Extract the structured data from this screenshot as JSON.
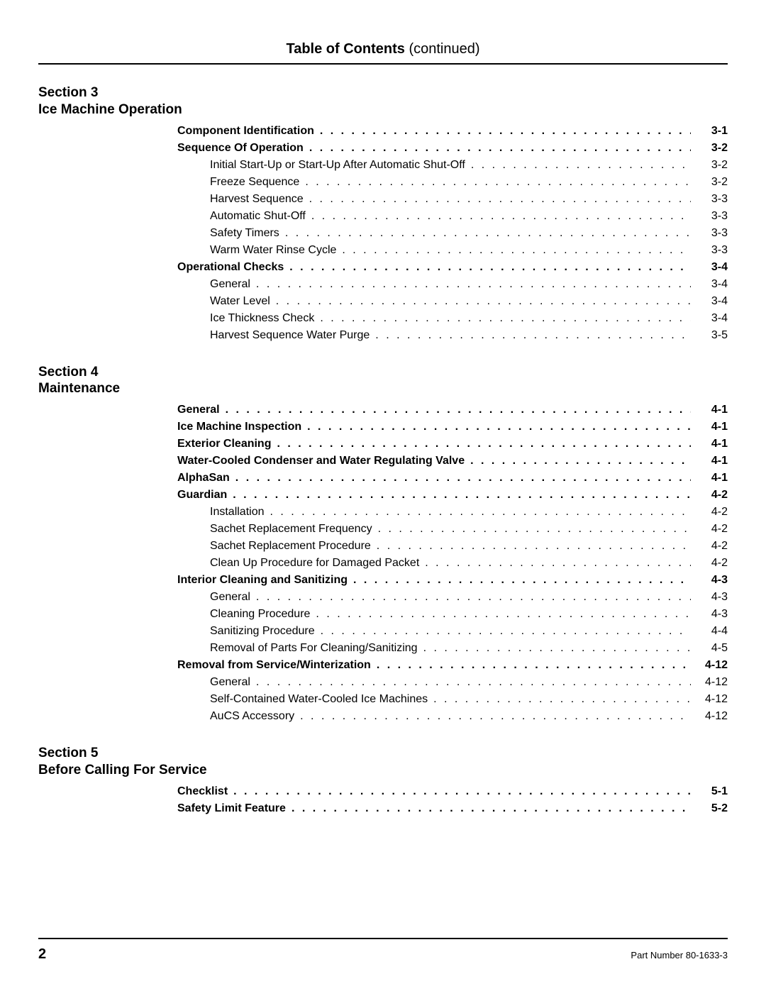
{
  "title": {
    "main": "Table of Contents",
    "continued": "(continued)"
  },
  "footer": {
    "page_number": "2",
    "part_number": "Part Number 80-1633-3"
  },
  "colors": {
    "text": "#000000",
    "background": "#ffffff",
    "rule": "#000000"
  },
  "fonts": {
    "title_size_pt": 20,
    "section_size_pt": 19,
    "body_size_pt": 16,
    "footer_small_pt": 13
  },
  "sections": [
    {
      "number": "Section 3",
      "title": "Ice Machine Operation",
      "entries": [
        {
          "label": "Component Identification",
          "page": "3-1",
          "indent": 0,
          "bold": true
        },
        {
          "label": "Sequence Of Operation",
          "page": "3-2",
          "indent": 0,
          "bold": true
        },
        {
          "label": "Initial Start-Up or Start-Up After Automatic Shut-Off",
          "page": "3-2",
          "indent": 1,
          "bold": false
        },
        {
          "label": "Freeze Sequence",
          "page": "3-2",
          "indent": 1,
          "bold": false
        },
        {
          "label": "Harvest Sequence",
          "page": "3-3",
          "indent": 1,
          "bold": false
        },
        {
          "label": "Automatic Shut-Off",
          "page": "3-3",
          "indent": 1,
          "bold": false
        },
        {
          "label": "Safety Timers",
          "page": "3-3",
          "indent": 1,
          "bold": false
        },
        {
          "label": "Warm Water Rinse Cycle",
          "page": "3-3",
          "indent": 1,
          "bold": false
        },
        {
          "label": "Operational Checks",
          "page": "3-4",
          "indent": 0,
          "bold": true
        },
        {
          "label": "General",
          "page": "3-4",
          "indent": 1,
          "bold": false
        },
        {
          "label": "Water Level",
          "page": "3-4",
          "indent": 1,
          "bold": false
        },
        {
          "label": "Ice Thickness Check",
          "page": "3-4",
          "indent": 1,
          "bold": false
        },
        {
          "label": "Harvest Sequence Water Purge",
          "page": "3-5",
          "indent": 1,
          "bold": false
        }
      ]
    },
    {
      "number": "Section 4",
      "title": "Maintenance",
      "entries": [
        {
          "label": "General",
          "page": "4-1",
          "indent": 0,
          "bold": true
        },
        {
          "label": "Ice Machine Inspection",
          "page": "4-1",
          "indent": 0,
          "bold": true
        },
        {
          "label": "Exterior Cleaning",
          "page": "4-1",
          "indent": 0,
          "bold": true
        },
        {
          "label": "Water-Cooled Condenser and Water Regulating Valve",
          "page": "4-1",
          "indent": 0,
          "bold": true
        },
        {
          "label": "AlphaSan",
          "page": "4-1",
          "indent": 0,
          "bold": true
        },
        {
          "label": "Guardian",
          "page": "4-2",
          "indent": 0,
          "bold": true
        },
        {
          "label": "Installation",
          "page": "4-2",
          "indent": 1,
          "bold": false
        },
        {
          "label": "Sachet Replacement Frequency",
          "page": "4-2",
          "indent": 1,
          "bold": false
        },
        {
          "label": "Sachet Replacement Procedure",
          "page": "4-2",
          "indent": 1,
          "bold": false
        },
        {
          "label": "Clean Up Procedure for Damaged Packet",
          "page": "4-2",
          "indent": 1,
          "bold": false
        },
        {
          "label": "Interior Cleaning and Sanitizing",
          "page": "4-3",
          "indent": 0,
          "bold": true
        },
        {
          "label": "General",
          "page": "4-3",
          "indent": 1,
          "bold": false
        },
        {
          "label": "Cleaning Procedure",
          "page": "4-3",
          "indent": 1,
          "bold": false
        },
        {
          "label": "Sanitizing Procedure",
          "page": "4-4",
          "indent": 1,
          "bold": false
        },
        {
          "label": "Removal of Parts For Cleaning/Sanitizing",
          "page": "4-5",
          "indent": 1,
          "bold": false
        },
        {
          "label": "Removal from Service/Winterization",
          "page": "4-12",
          "indent": 0,
          "bold": true
        },
        {
          "label": "General",
          "page": "4-12",
          "indent": 1,
          "bold": false
        },
        {
          "label": "Self-Contained Water-Cooled Ice Machines",
          "page": "4-12",
          "indent": 1,
          "bold": false
        },
        {
          "label": "AuCS Accessory",
          "page": "4-12",
          "indent": 1,
          "bold": false
        }
      ]
    },
    {
      "number": "Section 5",
      "title": "Before Calling For Service",
      "entries": [
        {
          "label": "Checklist",
          "page": "5-1",
          "indent": 0,
          "bold": true
        },
        {
          "label": "Safety Limit Feature",
          "page": "5-2",
          "indent": 0,
          "bold": true
        }
      ]
    }
  ]
}
